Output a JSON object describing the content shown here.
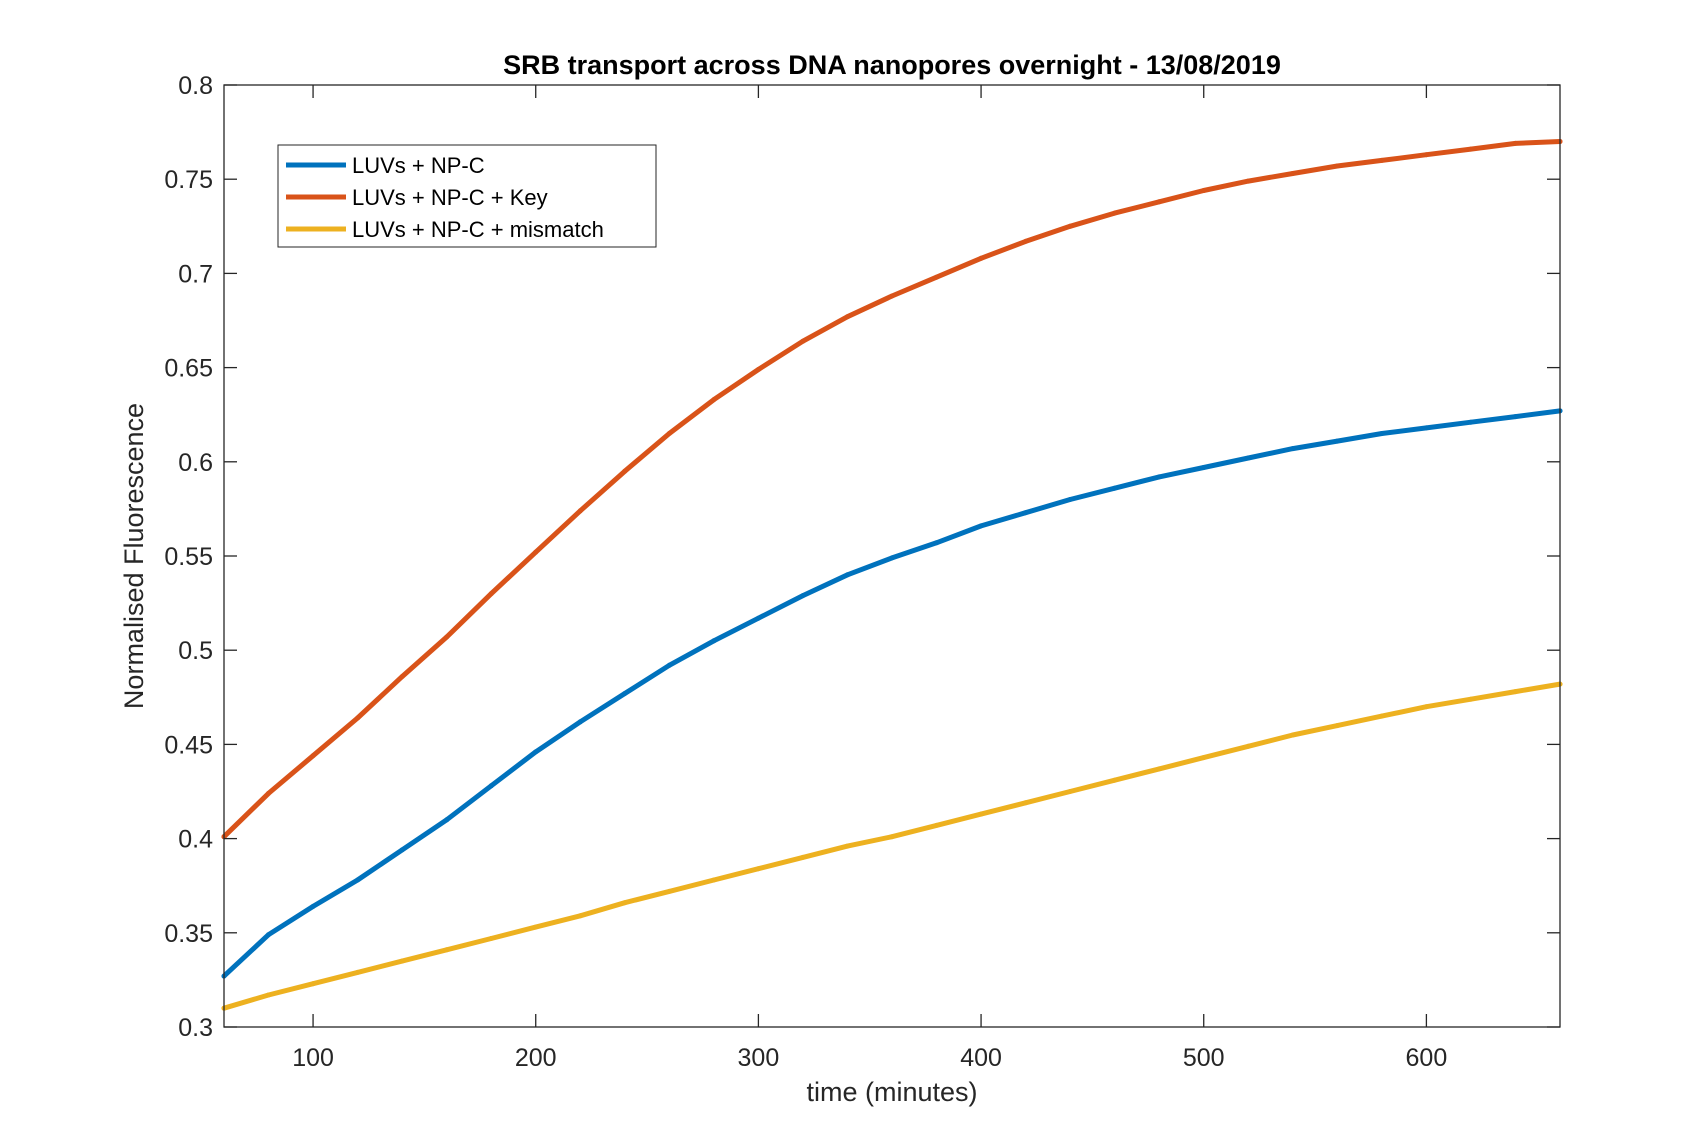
{
  "chart_data": {
    "type": "line",
    "title": "SRB transport across DNA nanopores overnight  - 13/08/2019",
    "xlabel": "time (minutes)",
    "ylabel": "Normalised Fluorescence",
    "xlim": [
      60,
      660
    ],
    "ylim": [
      0.3,
      0.8
    ],
    "xticks": [
      100,
      200,
      300,
      400,
      500,
      600
    ],
    "yticks": [
      0.3,
      0.35,
      0.4,
      0.45,
      0.5,
      0.55,
      0.6,
      0.65,
      0.7,
      0.75,
      0.8
    ],
    "ytick_labels": [
      "0.3",
      "0.35",
      "0.4",
      "0.45",
      "0.5",
      "0.55",
      "0.6",
      "0.65",
      "0.7",
      "0.75",
      "0.8"
    ],
    "grid": false,
    "box": true,
    "legend_placement": "top-left",
    "x": [
      60,
      80,
      100,
      120,
      140,
      160,
      180,
      200,
      220,
      240,
      260,
      280,
      300,
      320,
      340,
      360,
      380,
      400,
      420,
      440,
      460,
      480,
      500,
      520,
      540,
      560,
      580,
      600,
      620,
      640,
      660
    ],
    "series": [
      {
        "name": "LUVs + NP-C",
        "color": "#0072BD",
        "values": [
          0.327,
          0.349,
          0.364,
          0.378,
          0.394,
          0.41,
          0.428,
          0.446,
          0.462,
          0.477,
          0.492,
          0.505,
          0.517,
          0.529,
          0.54,
          0.549,
          0.557,
          0.566,
          0.573,
          0.58,
          0.586,
          0.592,
          0.597,
          0.602,
          0.607,
          0.611,
          0.615,
          0.618,
          0.621,
          0.624,
          0.627
        ]
      },
      {
        "name": "LUVs + NP-C + Key",
        "color": "#D95319",
        "values": [
          0.401,
          0.424,
          0.444,
          0.464,
          0.486,
          0.507,
          0.53,
          0.552,
          0.574,
          0.595,
          0.615,
          0.633,
          0.649,
          0.664,
          0.677,
          0.688,
          0.698,
          0.708,
          0.717,
          0.725,
          0.732,
          0.738,
          0.744,
          0.749,
          0.753,
          0.757,
          0.76,
          0.763,
          0.766,
          0.769,
          0.77
        ]
      },
      {
        "name": "LUVs + NP-C + mismatch",
        "color": "#EDB120",
        "values": [
          0.31,
          0.317,
          0.323,
          0.329,
          0.335,
          0.341,
          0.347,
          0.353,
          0.359,
          0.366,
          0.372,
          0.378,
          0.384,
          0.39,
          0.396,
          0.401,
          0.407,
          0.413,
          0.419,
          0.425,
          0.431,
          0.437,
          0.443,
          0.449,
          0.455,
          0.46,
          0.465,
          0.47,
          0.474,
          0.478,
          0.482
        ]
      }
    ]
  }
}
